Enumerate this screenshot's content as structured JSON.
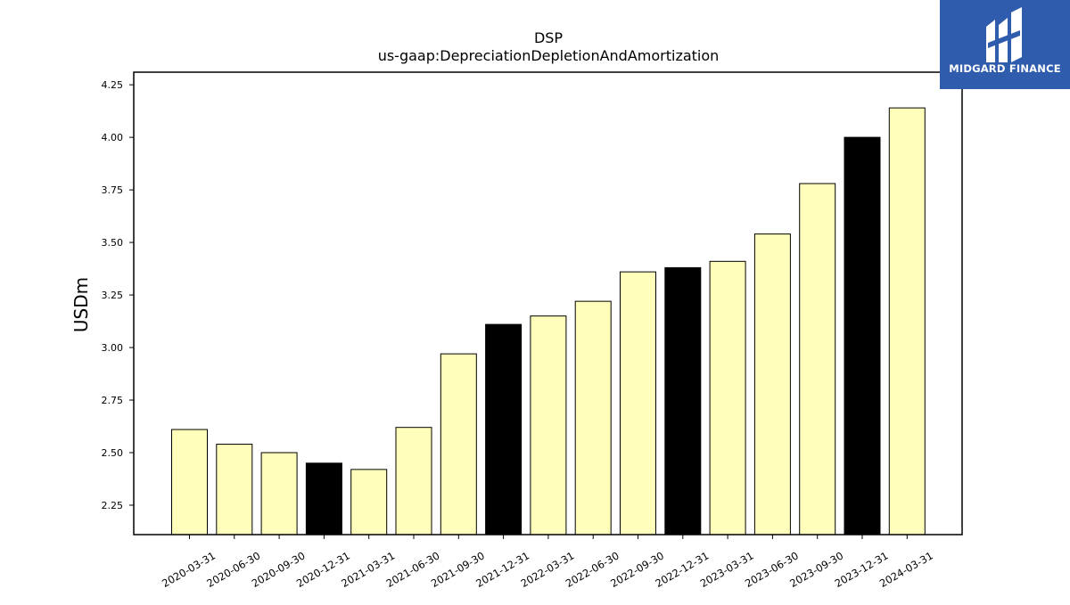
{
  "logo": {
    "text": "MIDGARD FINANCE",
    "background": "#2f5cad"
  },
  "chart_data": {
    "type": "bar",
    "title": "DSP",
    "subtitle": "us-gaap:DepreciationDepletionAndAmortization",
    "ylabel": "USDm",
    "xlabel": "",
    "ylim": [
      2.11,
      4.31
    ],
    "yticks": [
      "2.25",
      "2.50",
      "2.75",
      "3.00",
      "3.25",
      "3.50",
      "3.75",
      "4.00",
      "4.25"
    ],
    "grid": false,
    "categories": [
      "2020-03-31",
      "2020-06-30",
      "2020-09-30",
      "2020-12-31",
      "2021-03-31",
      "2021-06-30",
      "2021-09-30",
      "2021-12-31",
      "2022-03-31",
      "2022-06-30",
      "2022-09-30",
      "2022-12-31",
      "2023-03-31",
      "2023-06-30",
      "2023-09-30",
      "2023-12-31",
      "2024-03-31"
    ],
    "values": [
      2.61,
      2.54,
      2.5,
      2.45,
      2.42,
      2.62,
      2.97,
      3.11,
      3.15,
      3.22,
      3.36,
      3.38,
      3.41,
      3.54,
      3.78,
      4.0,
      4.14
    ],
    "bar_colors": [
      "#ffffbb",
      "#ffffbb",
      "#ffffbb",
      "#000000",
      "#ffffbb",
      "#ffffbb",
      "#ffffbb",
      "#000000",
      "#ffffbb",
      "#ffffbb",
      "#ffffbb",
      "#000000",
      "#ffffbb",
      "#ffffbb",
      "#ffffbb",
      "#000000",
      "#ffffbb"
    ]
  }
}
